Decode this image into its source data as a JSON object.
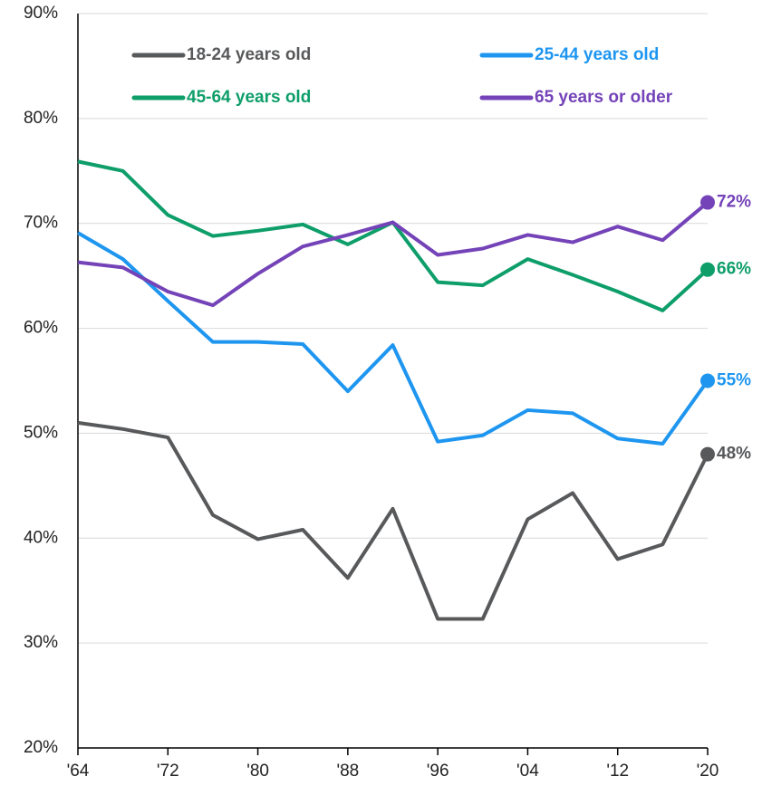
{
  "chart_data": {
    "type": "line",
    "x": [
      1964,
      1968,
      1972,
      1976,
      1980,
      1984,
      1988,
      1992,
      1996,
      2000,
      2004,
      2008,
      2012,
      2016,
      2020
    ],
    "xlim": [
      1964,
      2020
    ],
    "xticks": [
      {
        "value": 1964,
        "label": "'64"
      },
      {
        "value": 1972,
        "label": "'72"
      },
      {
        "value": 1980,
        "label": "'80"
      },
      {
        "value": 1988,
        "label": "'88"
      },
      {
        "value": 1996,
        "label": "'96"
      },
      {
        "value": 2004,
        "label": "'04"
      },
      {
        "value": 2012,
        "label": "'12"
      },
      {
        "value": 2020,
        "label": "'20"
      }
    ],
    "ylim": [
      20,
      90
    ],
    "yticks": [
      {
        "value": 20,
        "label": "20%"
      },
      {
        "value": 30,
        "label": "30%"
      },
      {
        "value": 40,
        "label": "40%"
      },
      {
        "value": 50,
        "label": "50%"
      },
      {
        "value": 60,
        "label": "60%"
      },
      {
        "value": 70,
        "label": "70%"
      },
      {
        "value": 80,
        "label": "80%"
      },
      {
        "value": 90,
        "label": "90%"
      }
    ],
    "grid": true,
    "legend": "top",
    "series": [
      {
        "name": "18-24 years old",
        "color": "#58595b",
        "values": [
          51.0,
          50.4,
          49.6,
          42.2,
          39.9,
          40.8,
          36.2,
          42.8,
          32.3,
          32.3,
          41.8,
          44.3,
          38.0,
          39.4,
          48.0
        ],
        "value_labels": [
          null,
          null,
          null,
          null,
          null,
          null,
          null,
          null,
          null,
          null,
          null,
          null,
          null,
          null,
          "48%"
        ]
      },
      {
        "name": "25-44 years old",
        "color": "#1e96f0",
        "values": [
          69.1,
          66.6,
          62.6,
          58.7,
          58.7,
          58.5,
          54.0,
          58.4,
          49.2,
          49.8,
          52.2,
          51.9,
          49.5,
          49.0,
          55.0
        ],
        "value_labels": [
          null,
          null,
          null,
          null,
          null,
          null,
          null,
          null,
          null,
          null,
          null,
          null,
          null,
          null,
          "55%"
        ]
      },
      {
        "name": "45-64 years old",
        "color": "#0e9e6a",
        "values": [
          75.9,
          75.0,
          70.8,
          68.8,
          69.3,
          69.9,
          68.0,
          70.1,
          64.4,
          64.1,
          66.6,
          65.1,
          63.5,
          61.7,
          65.6
        ],
        "value_labels": [
          null,
          null,
          null,
          null,
          null,
          null,
          null,
          null,
          null,
          null,
          null,
          null,
          null,
          null,
          "66%"
        ]
      },
      {
        "name": "65 years or older",
        "color": "#7443b8",
        "values": [
          66.3,
          65.8,
          63.5,
          62.2,
          65.2,
          67.8,
          68.9,
          70.1,
          67.0,
          67.6,
          68.9,
          68.2,
          69.7,
          68.4,
          72.0
        ],
        "value_labels": [
          null,
          null,
          null,
          null,
          null,
          null,
          null,
          null,
          null,
          null,
          null,
          null,
          null,
          null,
          "72%"
        ]
      }
    ]
  }
}
